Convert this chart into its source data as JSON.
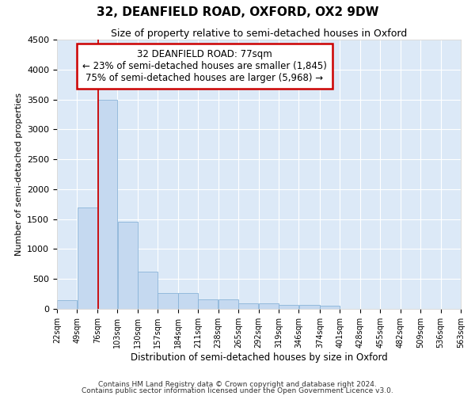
{
  "title": "32, DEANFIELD ROAD, OXFORD, OX2 9DW",
  "subtitle": "Size of property relative to semi-detached houses in Oxford",
  "xlabel": "Distribution of semi-detached houses by size in Oxford",
  "ylabel": "Number of semi-detached properties",
  "footnote1": "Contains HM Land Registry data © Crown copyright and database right 2024.",
  "footnote2": "Contains public sector information licensed under the Open Government Licence v3.0.",
  "annotation_line1": "32 DEANFIELD ROAD: 77sqm",
  "annotation_line2": "← 23% of semi-detached houses are smaller (1,845)",
  "annotation_line3": "75% of semi-detached houses are larger (5,968) →",
  "property_size": 77,
  "bin_edges": [
    22,
    49,
    76,
    103,
    130,
    157,
    184,
    211,
    238,
    265,
    292,
    319,
    346,
    374,
    401,
    428,
    455,
    482,
    509,
    536,
    563
  ],
  "bin_labels": [
    "22sqm",
    "49sqm",
    "76sqm",
    "103sqm",
    "130sqm",
    "157sqm",
    "184sqm",
    "211sqm",
    "238sqm",
    "265sqm",
    "292sqm",
    "319sqm",
    "346sqm",
    "374sqm",
    "401sqm",
    "428sqm",
    "455sqm",
    "482sqm",
    "509sqm",
    "536sqm",
    "563sqm"
  ],
  "bar_heights": [
    150,
    1700,
    3500,
    1450,
    620,
    270,
    270,
    160,
    160,
    90,
    90,
    60,
    60,
    55,
    0,
    0,
    0,
    0,
    0,
    0,
    0
  ],
  "bar_color": "#c5d9f0",
  "bar_edgecolor": "#8ab4d8",
  "redline_color": "#cc0000",
  "annotation_box_edgecolor": "#cc0000",
  "background_color": "#dce9f7",
  "plot_bg_color": "#dce9f7",
  "ylim": [
    0,
    4500
  ],
  "yticks": [
    0,
    500,
    1000,
    1500,
    2000,
    2500,
    3000,
    3500,
    4000,
    4500
  ]
}
